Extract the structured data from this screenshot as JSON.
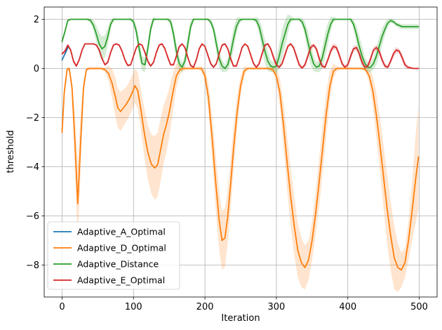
{
  "chart_data": {
    "type": "line",
    "title": "",
    "xlabel": "Iteration",
    "ylabel": "threshold",
    "xlim": [
      -25,
      525
    ],
    "ylim": [
      -9.3,
      2.5
    ],
    "grid": true,
    "legend_position": "lower-left",
    "x_ticks": [
      0,
      100,
      200,
      300,
      400,
      500
    ],
    "x_tick_labels": [
      "0",
      "100",
      "200",
      "300",
      "400",
      "500"
    ],
    "y_ticks": [
      2,
      0,
      -2,
      -4,
      -6,
      -8
    ],
    "y_tick_labels": [
      "2",
      "0",
      "−2",
      "−4",
      "−6",
      "−8"
    ],
    "series": [
      {
        "name": "Adaptive_A_Optimal",
        "color": "#1f77b4",
        "x": [
          0,
          5,
          9
        ],
        "y": [
          0.35,
          0.65,
          0.9
        ],
        "band_width": 0
      },
      {
        "name": "Adaptive_D_Optimal",
        "color": "#ff7f0e",
        "x": [
          0,
          3,
          7,
          10,
          14,
          18,
          22,
          26,
          30,
          34,
          38,
          45,
          55,
          60,
          65,
          70,
          75,
          78,
          82,
          86,
          90,
          94,
          98,
          102,
          106,
          110,
          115,
          120,
          125,
          130,
          134,
          138,
          142,
          146,
          150,
          155,
          160,
          165,
          170,
          175,
          180,
          185,
          190,
          195,
          200,
          205,
          210,
          215,
          220,
          224,
          228,
          232,
          236,
          240,
          245,
          250,
          255,
          260,
          265,
          270,
          275,
          280,
          285,
          290,
          295,
          300,
          305,
          310,
          315,
          320,
          325,
          330,
          335,
          340,
          345,
          350,
          355,
          360,
          365,
          370,
          375,
          380,
          385,
          390,
          395,
          400,
          405,
          410,
          415,
          420,
          425,
          430,
          435,
          440,
          445,
          450,
          455,
          460,
          465,
          470,
          475,
          480,
          485,
          490,
          495,
          499
        ],
        "y": [
          -2.6,
          -1.0,
          -0.05,
          0,
          -0.8,
          -3.0,
          -5.5,
          -3.0,
          -0.8,
          -0.05,
          0,
          0,
          0,
          -0.05,
          -0.2,
          -0.6,
          -1.2,
          -1.6,
          -1.75,
          -1.6,
          -1.45,
          -1.25,
          -1.0,
          -0.7,
          -0.9,
          -1.6,
          -2.6,
          -3.4,
          -3.9,
          -4.05,
          -3.9,
          -3.3,
          -2.7,
          -2.3,
          -1.8,
          -1.0,
          -0.3,
          -0.05,
          0,
          0,
          0,
          0,
          0,
          0,
          -0.3,
          -1.2,
          -2.8,
          -4.6,
          -6.2,
          -7.0,
          -6.9,
          -6.0,
          -4.7,
          -3.3,
          -1.8,
          -0.7,
          -0.1,
          0,
          0,
          0,
          0,
          0,
          0,
          0,
          -0.05,
          -0.3,
          -1.0,
          -2.3,
          -3.8,
          -5.2,
          -6.4,
          -7.4,
          -7.9,
          -8.1,
          -7.8,
          -7.0,
          -5.9,
          -4.6,
          -3.2,
          -1.8,
          -0.7,
          -0.1,
          0,
          0,
          0,
          0,
          0,
          0,
          0,
          0,
          -0.05,
          -0.3,
          -0.9,
          -1.9,
          -3.1,
          -4.4,
          -5.7,
          -6.8,
          -7.7,
          -8.1,
          -8.2,
          -7.9,
          -7.0,
          -5.8,
          -4.5,
          -3.6
        ],
        "band_width": [
          0.3,
          0.3,
          0.1,
          0.05,
          0.3,
          1.2,
          1.6,
          1.2,
          0.3,
          0.05,
          0.05,
          0.05,
          0.05,
          0.1,
          0.3,
          0.6,
          0.8,
          0.8,
          0.8,
          0.75,
          0.7,
          0.7,
          0.7,
          0.7,
          0.75,
          0.8,
          1.0,
          1.1,
          1.2,
          1.3,
          1.3,
          1.3,
          1.2,
          1.1,
          1.0,
          0.8,
          0.5,
          0.2,
          0.1,
          0.05,
          0.05,
          0.05,
          0.05,
          0.1,
          0.3,
          0.6,
          0.9,
          1.1,
          1.2,
          1.2,
          1.2,
          1.1,
          1.0,
          0.9,
          0.7,
          0.4,
          0.2,
          0.05,
          0.05,
          0.05,
          0.05,
          0.05,
          0.05,
          0.05,
          0.1,
          0.3,
          0.6,
          0.9,
          1.1,
          1.2,
          1.2,
          1.1,
          1.0,
          0.9,
          0.8,
          0.8,
          0.9,
          1.0,
          1.0,
          0.9,
          0.6,
          0.3,
          0.1,
          0.05,
          0.05,
          0.05,
          0.05,
          0.05,
          0.05,
          0.05,
          0.1,
          0.3,
          0.6,
          0.9,
          1.1,
          1.3,
          1.4,
          1.4,
          1.3,
          1.0,
          0.7,
          0.6,
          0.8,
          1.2,
          1.8,
          2.1
        ]
      },
      {
        "name": "Adaptive_Distance",
        "color": "#2ca02c",
        "x": [
          0,
          4,
          8,
          12,
          16,
          20,
          24,
          28,
          32,
          36,
          40,
          44,
          48,
          52,
          56,
          60,
          64,
          68,
          72,
          76,
          80,
          84,
          88,
          92,
          96,
          100,
          104,
          108,
          112,
          116,
          120,
          124,
          128,
          132,
          136,
          140,
          144,
          148,
          152,
          156,
          160,
          164,
          168,
          172,
          176,
          180,
          184,
          188,
          192,
          196,
          200,
          204,
          208,
          212,
          216,
          220,
          224,
          228,
          232,
          236,
          240,
          244,
          248,
          252,
          256,
          260,
          264,
          268,
          272,
          276,
          280,
          284,
          288,
          292,
          296,
          300,
          304,
          308,
          312,
          316,
          320,
          324,
          328,
          332,
          336,
          340,
          344,
          348,
          352,
          356,
          360,
          364,
          368,
          372,
          376,
          380,
          384,
          388,
          392,
          396,
          400,
          404,
          408,
          412,
          416,
          420,
          424,
          428,
          432,
          436,
          440,
          444,
          448,
          452,
          456,
          460,
          464,
          468,
          472,
          476,
          480,
          484,
          488,
          492,
          496,
          499
        ],
        "y": [
          1.1,
          1.5,
          1.95,
          2.0,
          2.0,
          2.0,
          2.0,
          2.0,
          2.0,
          2.0,
          1.95,
          1.75,
          1.4,
          1.0,
          0.8,
          0.9,
          1.3,
          1.8,
          2.0,
          2.0,
          2.0,
          2.0,
          2.0,
          2.0,
          2.0,
          1.9,
          1.5,
          0.8,
          0.2,
          0.15,
          0.8,
          1.6,
          2.0,
          2.0,
          2.0,
          2.0,
          2.0,
          2.0,
          1.9,
          1.4,
          0.7,
          0.2,
          0.05,
          0.3,
          1.0,
          1.7,
          2.0,
          2.0,
          2.0,
          2.0,
          2.0,
          2.0,
          1.9,
          1.6,
          1.0,
          0.4,
          0.1,
          0.0,
          0.15,
          0.6,
          1.2,
          1.7,
          1.95,
          2.0,
          2.0,
          2.0,
          2.0,
          2.0,
          1.95,
          1.7,
          1.2,
          0.7,
          0.3,
          0.1,
          0.05,
          0.1,
          0.5,
          1.0,
          1.4,
          1.8,
          2.0,
          2.0,
          2.0,
          2.0,
          1.9,
          1.6,
          1.1,
          0.6,
          0.2,
          0.05,
          0.1,
          0.4,
          0.9,
          1.4,
          1.8,
          2.0,
          2.0,
          2.0,
          2.0,
          2.0,
          2.0,
          2.0,
          1.8,
          1.4,
          0.9,
          0.5,
          0.2,
          0.05,
          0.05,
          0.2,
          0.5,
          0.9,
          1.3,
          1.6,
          1.85,
          1.95,
          1.9,
          1.8,
          1.75,
          1.7,
          1.7,
          1.7,
          1.7,
          1.7,
          1.7,
          1.7
        ],
        "band_width": [
          0.1,
          0.1,
          0.05,
          0.02,
          0.02,
          0.02,
          0.02,
          0.02,
          0.02,
          0.05,
          0.1,
          0.2,
          0.35,
          0.45,
          0.5,
          0.45,
          0.35,
          0.2,
          0.05,
          0.02,
          0.02,
          0.02,
          0.02,
          0.02,
          0.05,
          0.1,
          0.25,
          0.35,
          0.3,
          0.3,
          0.3,
          0.25,
          0.1,
          0.02,
          0.02,
          0.02,
          0.02,
          0.05,
          0.15,
          0.3,
          0.35,
          0.3,
          0.2,
          0.25,
          0.35,
          0.25,
          0.05,
          0.02,
          0.02,
          0.02,
          0.02,
          0.05,
          0.1,
          0.2,
          0.35,
          0.35,
          0.25,
          0.15,
          0.25,
          0.4,
          0.45,
          0.35,
          0.15,
          0.05,
          0.02,
          0.02,
          0.02,
          0.05,
          0.15,
          0.3,
          0.45,
          0.5,
          0.4,
          0.25,
          0.2,
          0.3,
          0.5,
          0.6,
          0.55,
          0.4,
          0.15,
          0.05,
          0.02,
          0.05,
          0.15,
          0.3,
          0.45,
          0.45,
          0.3,
          0.2,
          0.25,
          0.4,
          0.5,
          0.45,
          0.3,
          0.1,
          0.02,
          0.02,
          0.02,
          0.02,
          0.02,
          0.05,
          0.2,
          0.35,
          0.45,
          0.4,
          0.25,
          0.2,
          0.2,
          0.25,
          0.35,
          0.4,
          0.35,
          0.25,
          0.15,
          0.1,
          0.1,
          0.1,
          0.1,
          0.1,
          0.1,
          0.1,
          0.1,
          0.1,
          0.1,
          0.1
        ]
      },
      {
        "name": "Adaptive_E_Optimal",
        "color": "#d62728",
        "x": [
          0,
          4,
          8,
          12,
          16,
          20,
          24,
          28,
          32,
          36,
          40,
          44,
          48,
          52,
          56,
          60,
          64,
          68,
          72,
          76,
          80,
          84,
          88,
          92,
          96,
          100,
          104,
          108,
          112,
          116,
          120,
          124,
          128,
          132,
          136,
          140,
          144,
          148,
          152,
          156,
          160,
          164,
          168,
          172,
          176,
          180,
          184,
          188,
          192,
          196,
          200,
          204,
          208,
          212,
          216,
          220,
          224,
          228,
          232,
          236,
          240,
          244,
          248,
          252,
          256,
          260,
          264,
          268,
          272,
          276,
          280,
          284,
          288,
          292,
          296,
          300,
          304,
          308,
          312,
          316,
          320,
          324,
          328,
          332,
          336,
          340,
          344,
          348,
          352,
          356,
          360,
          364,
          368,
          372,
          376,
          380,
          384,
          388,
          392,
          396,
          400,
          404,
          408,
          412,
          416,
          420,
          424,
          428,
          432,
          436,
          440,
          444,
          448,
          452,
          456,
          460,
          464,
          468,
          472,
          476,
          480,
          484,
          488,
          492,
          496,
          499
        ],
        "y": [
          0.6,
          0.7,
          0.95,
          0.75,
          0.3,
          0.1,
          0.35,
          0.75,
          1.0,
          1.0,
          1.0,
          1.0,
          0.95,
          0.75,
          0.4,
          0.15,
          0.25,
          0.65,
          0.95,
          1.0,
          0.95,
          0.7,
          0.35,
          0.12,
          0.15,
          0.5,
          0.85,
          1.0,
          0.95,
          0.65,
          0.3,
          0.1,
          0.25,
          0.65,
          0.95,
          1.0,
          0.8,
          0.45,
          0.15,
          0.15,
          0.5,
          0.88,
          1.0,
          0.85,
          0.45,
          0.12,
          0.05,
          0.35,
          0.8,
          1.0,
          0.9,
          0.55,
          0.2,
          0.05,
          0.2,
          0.6,
          0.95,
          1.0,
          0.8,
          0.4,
          0.1,
          0.1,
          0.45,
          0.85,
          1.0,
          0.9,
          0.55,
          0.2,
          0.05,
          0.2,
          0.6,
          0.95,
          1.0,
          0.8,
          0.45,
          0.15,
          0.05,
          0.2,
          0.55,
          0.9,
          1.0,
          0.85,
          0.5,
          0.15,
          0.02,
          0.15,
          0.5,
          0.85,
          0.95,
          0.8,
          0.4,
          0.1,
          0.05,
          0.35,
          0.7,
          0.9,
          0.85,
          0.55,
          0.2,
          0.05,
          0.15,
          0.5,
          0.8,
          0.85,
          0.6,
          0.25,
          0.05,
          0.1,
          0.4,
          0.75,
          0.85,
          0.7,
          0.35,
          0.1,
          0.05,
          0.3,
          0.6,
          0.75,
          0.7,
          0.45,
          0.15,
          0.05,
          0.02,
          0.0,
          0.0,
          0.0
        ],
        "band_width": [
          0.05,
          0.1,
          0.05,
          0.08,
          0.1,
          0.05,
          0.08,
          0.05,
          0.02,
          0.02,
          0.02,
          0.02,
          0.03,
          0.05,
          0.08,
          0.05,
          0.08,
          0.08,
          0.03,
          0.02,
          0.03,
          0.08,
          0.1,
          0.05,
          0.05,
          0.1,
          0.08,
          0.02,
          0.03,
          0.08,
          0.1,
          0.05,
          0.08,
          0.1,
          0.05,
          0.03,
          0.08,
          0.1,
          0.06,
          0.06,
          0.1,
          0.08,
          0.03,
          0.08,
          0.1,
          0.06,
          0.04,
          0.08,
          0.08,
          0.03,
          0.05,
          0.1,
          0.1,
          0.05,
          0.08,
          0.1,
          0.05,
          0.03,
          0.08,
          0.1,
          0.06,
          0.06,
          0.1,
          0.08,
          0.03,
          0.06,
          0.12,
          0.1,
          0.05,
          0.1,
          0.12,
          0.06,
          0.04,
          0.1,
          0.15,
          0.1,
          0.05,
          0.1,
          0.15,
          0.1,
          0.05,
          0.1,
          0.15,
          0.1,
          0.05,
          0.1,
          0.15,
          0.12,
          0.08,
          0.12,
          0.15,
          0.1,
          0.08,
          0.12,
          0.15,
          0.12,
          0.1,
          0.15,
          0.12,
          0.08,
          0.1,
          0.15,
          0.12,
          0.1,
          0.15,
          0.15,
          0.08,
          0.1,
          0.15,
          0.12,
          0.1,
          0.15,
          0.15,
          0.1,
          0.08,
          0.12,
          0.15,
          0.12,
          0.1,
          0.15,
          0.12,
          0.08,
          0.05,
          0.03,
          0.03,
          0.03
        ]
      }
    ]
  }
}
